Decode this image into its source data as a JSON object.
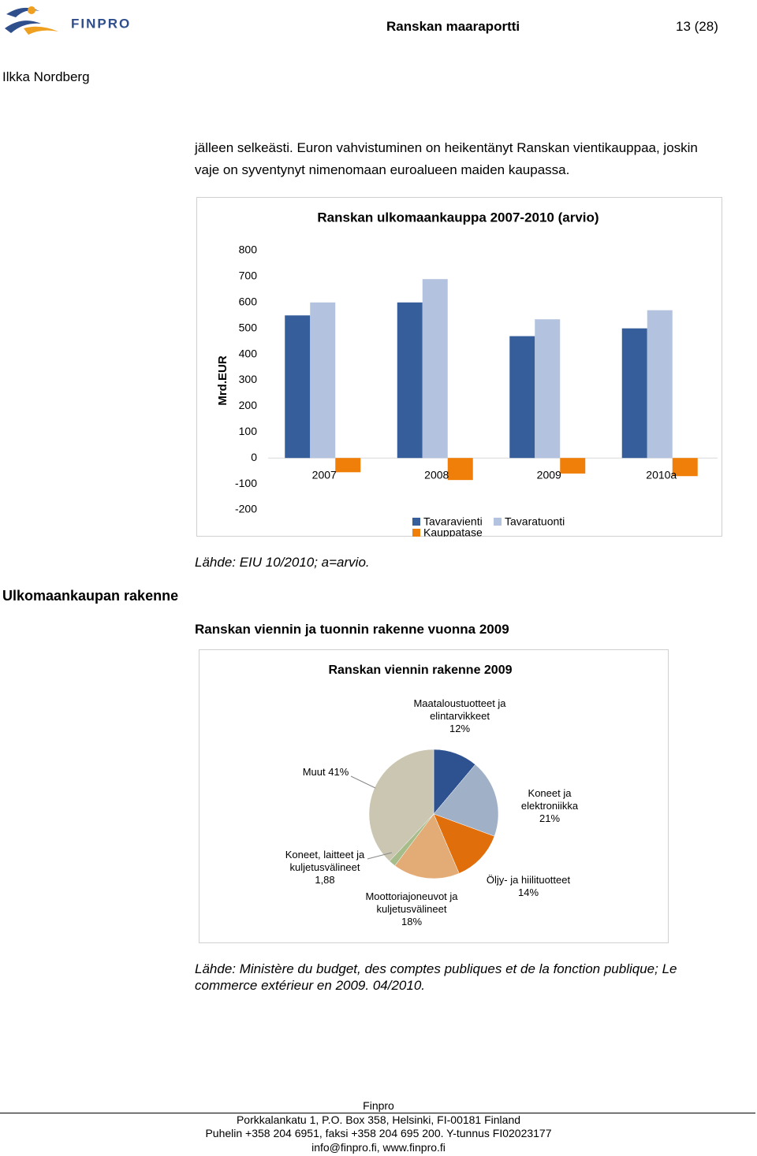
{
  "header": {
    "logo": "FINPRO",
    "title": "Ranskan maaraportti",
    "page": "13 (28)",
    "author": "Ilkka Nordberg"
  },
  "body": {
    "paragraph": [
      "jälleen selkeästi. Euron vahvistuminen on heikentänyt Ranskan vientikauppaa, joskin",
      "vaje on syventynyt nimenomaan euroalueen maiden kaupassa."
    ],
    "source1": "Lähde: EIU 10/2010; a=arvio.",
    "section_heading": "Ulkomaankaupan rakenne",
    "subheading": "Ranskan viennin ja tuonnin rakenne vuonna 2009",
    "source2": [
      "Lähde: Ministère du budget, des comptes publiques et de la fonction publique; Le",
      "commerce extérieur en 2009. 04/2010."
    ]
  },
  "chart_data": [
    {
      "type": "bar",
      "title": "Ranskan ulkomaankauppa 2007-2010 (arvio)",
      "y_label": "Mrd.EUR",
      "categories": [
        "2007",
        "2008",
        "2009",
        "2010a"
      ],
      "series": [
        {
          "name": "Tavaravienti",
          "color": "#365e9b",
          "values": [
            550,
            600,
            470,
            500
          ]
        },
        {
          "name": "Tavaratuonti",
          "color": "#b3c3df",
          "values": [
            600,
            690,
            535,
            570
          ]
        },
        {
          "name": "Kauppatase",
          "color": "#f07f09",
          "values": [
            -55,
            -85,
            -60,
            -70
          ]
        }
      ],
      "ylim": [
        -200,
        800
      ],
      "yticks": [
        -200,
        -100,
        0,
        100,
        200,
        300,
        400,
        500,
        600,
        700,
        800
      ],
      "grid": false
    },
    {
      "type": "pie",
      "title": "Ranskan viennin rakenne 2009",
      "categories": [
        "Maataloustuotteet ja elintarvikkeet",
        "Koneet ja elektroniikka",
        "Öljy- ja hiilituotteet",
        "Moottoriajoneuvot ja kuljetusvälineet",
        "Koneet, laitteet ja kuljetusvälineet",
        "Muut"
      ],
      "values": [
        12,
        21,
        14,
        18,
        1.88,
        41
      ],
      "value_labels": [
        "12%",
        "21%",
        "14%",
        "18%",
        "1,88",
        "41%"
      ],
      "colors": [
        "#2e528f",
        "#9fb0c7",
        "#df6e0b",
        "#e3ac77",
        "#a6bc8a",
        "#cac6b1"
      ]
    }
  ],
  "footer": [
    "Finpro",
    "Porkkalankatu 1, P.O. Box 358, Helsinki, FI-00181 Finland",
    "Puhelin +358 204 6951, faksi +358 204 695 200. Y-tunnus FI02023177",
    "info@finpro.fi, www.finpro.fi"
  ]
}
